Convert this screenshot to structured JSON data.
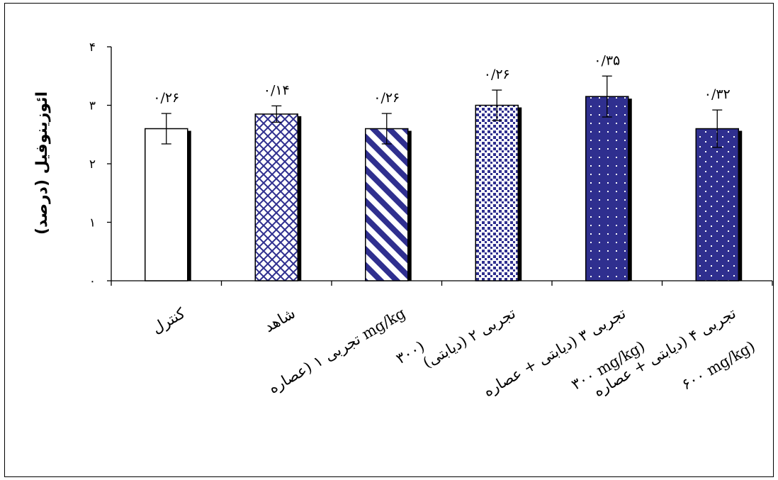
{
  "chart_data": {
    "type": "bar",
    "title": "",
    "xlabel": "",
    "ylabel": "ائوزینوفیل (درصد)",
    "ylim": [
      0,
      4
    ],
    "yticks": [
      "۰",
      "۱",
      "۲",
      "۳",
      "۴"
    ],
    "grid": false,
    "legend": "none",
    "categories": [
      [
        "کنترل"
      ],
      [
        "شاهد"
      ],
      [
        "تجربی ۱ (عصاره mg/kg",
        "۳۰۰)"
      ],
      [
        "تجربی ۲ (دیابتی)"
      ],
      [
        "تجربی ۳ (دیابتی + عصاره",
        "۳۰۰ mg/kg)"
      ],
      [
        "تجربی ۴ (دیابتی + عصاره",
        "۶۰۰ mg/kg)"
      ]
    ],
    "values": [
      2.6,
      2.85,
      2.6,
      3.0,
      3.15,
      2.6
    ],
    "errors": [
      0.26,
      0.14,
      0.26,
      0.26,
      0.35,
      0.32
    ],
    "error_labels": [
      "۰/۲۶",
      "۰/۱۴",
      "۰/۲۶",
      "۰/۲۶",
      "۰/۳۵",
      "۰/۳۲"
    ],
    "patterns": [
      "solid-white",
      "diamond-lattice",
      "diagonal-stripes",
      "small-squares",
      "dense-dots",
      "sparse-dots"
    ],
    "colors": {
      "fill": "#2f2f8f",
      "outline": "#000000",
      "shadow": "#000000",
      "background": "#ffffff"
    }
  }
}
